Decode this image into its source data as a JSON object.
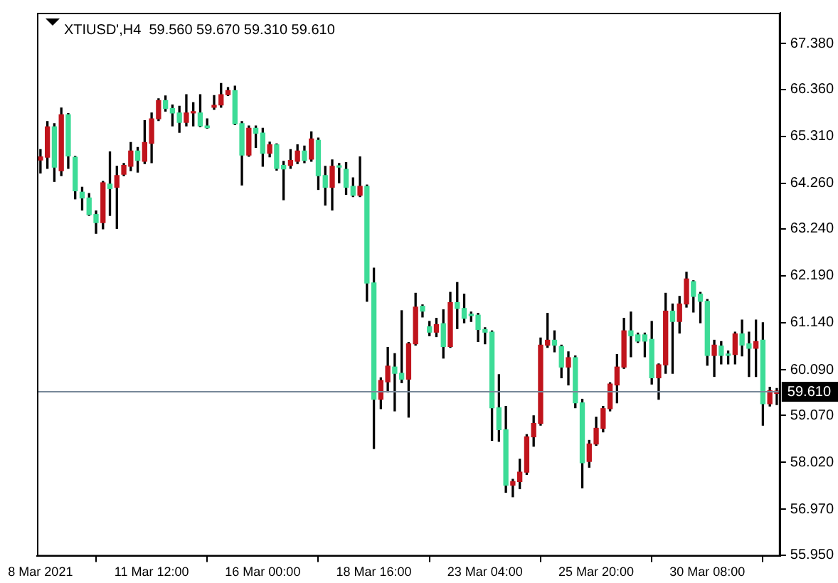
{
  "chart_data": {
    "type": "candlestick",
    "title": "XTIUSD',H4  59.560 59.670 59.310 59.610",
    "categories": [
      "8 Mar 2021",
      null,
      null,
      null,
      null,
      null,
      null,
      null,
      null,
      null,
      null,
      null,
      null,
      null,
      null,
      null,
      "11 Mar 12:00",
      null,
      null,
      null,
      null,
      null,
      null,
      null,
      null,
      null,
      null,
      null,
      null,
      null,
      null,
      null,
      "16 Mar 00:00",
      null,
      null,
      null,
      null,
      null,
      null,
      null,
      null,
      null,
      null,
      null,
      null,
      null,
      null,
      null,
      "18 Mar 16:00",
      null,
      null,
      null,
      null,
      null,
      null,
      null,
      null,
      null,
      null,
      null,
      null,
      null,
      null,
      null,
      "23 Mar 04:00",
      null,
      null,
      null,
      null,
      null,
      null,
      null,
      null,
      null,
      null,
      null,
      null,
      null,
      null,
      null,
      "25 Mar 20:00",
      null,
      null,
      null,
      null,
      null,
      null,
      null,
      null,
      null,
      null,
      null,
      null,
      null,
      null,
      null,
      "30 Mar 08:00",
      null,
      null,
      null,
      null,
      null,
      null,
      null,
      null,
      null,
      null
    ],
    "ohlc": [
      [
        64.78,
        65.01,
        64.49,
        64.85
      ],
      [
        64.84,
        65.64,
        64.59,
        65.52
      ],
      [
        65.52,
        65.59,
        64.3,
        64.62
      ],
      [
        64.54,
        65.94,
        64.43,
        65.79
      ],
      [
        65.79,
        65.82,
        64.59,
        64.87
      ],
      [
        64.84,
        64.86,
        63.91,
        64.09
      ],
      [
        64.06,
        64.17,
        63.66,
        63.93
      ],
      [
        63.93,
        64.03,
        63.54,
        63.56
      ],
      [
        63.56,
        63.64,
        63.14,
        63.38
      ],
      [
        63.38,
        64.3,
        63.24,
        64.27
      ],
      [
        64.24,
        64.96,
        63.54,
        64.14
      ],
      [
        64.17,
        64.64,
        63.25,
        64.43
      ],
      [
        64.46,
        64.7,
        64.43,
        64.66
      ],
      [
        64.64,
        65.17,
        64.54,
        64.98
      ],
      [
        64.98,
        65.06,
        64.51,
        64.77
      ],
      [
        64.75,
        65.66,
        64.7,
        65.17
      ],
      [
        65.15,
        65.83,
        64.72,
        65.7
      ],
      [
        65.7,
        66.15,
        65.66,
        66.11
      ],
      [
        66.11,
        66.21,
        65.87,
        65.93
      ],
      [
        65.93,
        66.01,
        65.54,
        65.83
      ],
      [
        65.83,
        65.98,
        65.4,
        65.62
      ],
      [
        65.62,
        66.24,
        65.54,
        65.83
      ],
      [
        65.83,
        66.06,
        65.54,
        65.85
      ],
      [
        65.83,
        66.24,
        65.52,
        65.54
      ],
      [
        65.54,
        65.7,
        65.49,
        65.5
      ],
      [
        65.96,
        66.22,
        65.91,
        66.0
      ],
      [
        66.01,
        66.49,
        65.96,
        66.24
      ],
      [
        66.24,
        66.4,
        66.22,
        66.33
      ],
      [
        66.33,
        66.43,
        65.57,
        65.59
      ],
      [
        65.59,
        65.64,
        64.22,
        64.89
      ],
      [
        64.89,
        65.54,
        64.86,
        65.49
      ],
      [
        65.49,
        65.54,
        65.06,
        65.38
      ],
      [
        65.38,
        65.49,
        64.64,
        64.93
      ],
      [
        64.93,
        65.18,
        64.85,
        65.12
      ],
      [
        65.12,
        65.14,
        64.55,
        64.59
      ],
      [
        64.66,
        64.75,
        63.89,
        64.58
      ],
      [
        64.66,
        65.01,
        64.59,
        64.77
      ],
      [
        64.75,
        65.12,
        64.7,
        64.98
      ],
      [
        64.98,
        65.09,
        64.72,
        64.77
      ],
      [
        64.8,
        65.41,
        64.75,
        65.25
      ],
      [
        65.22,
        65.27,
        64.12,
        64.43
      ],
      [
        64.43,
        64.64,
        63.77,
        64.17
      ],
      [
        64.17,
        64.78,
        63.66,
        64.64
      ],
      [
        64.64,
        64.7,
        64.27,
        64.62
      ],
      [
        64.57,
        64.72,
        64.01,
        64.17
      ],
      [
        64.19,
        64.38,
        63.96,
        63.99
      ],
      [
        63.99,
        64.85,
        63.96,
        64.19
      ],
      [
        64.19,
        64.22,
        61.62,
        62.03
      ],
      [
        62.03,
        62.36,
        58.33,
        59.43
      ],
      [
        59.43,
        59.91,
        59.22,
        59.85
      ],
      [
        59.82,
        60.59,
        59.59,
        60.17
      ],
      [
        60.15,
        60.45,
        59.17,
        60.01
      ],
      [
        60.01,
        61.41,
        59.8,
        59.88
      ],
      [
        59.88,
        60.7,
        59.03,
        60.67
      ],
      [
        60.67,
        61.8,
        60.64,
        61.49
      ],
      [
        61.51,
        61.54,
        61.27,
        61.4
      ],
      [
        61.05,
        61.17,
        60.85,
        60.93
      ],
      [
        60.93,
        61.24,
        60.83,
        61.1
      ],
      [
        61.12,
        61.43,
        60.35,
        60.61
      ],
      [
        60.61,
        61.82,
        60.59,
        61.59
      ],
      [
        61.59,
        62.04,
        61.01,
        61.46
      ],
      [
        61.46,
        61.78,
        61.14,
        61.24
      ],
      [
        61.31,
        61.38,
        61.17,
        61.3
      ],
      [
        61.31,
        61.35,
        60.72,
        60.99
      ],
      [
        60.99,
        61.03,
        60.67,
        60.93
      ],
      [
        60.93,
        60.96,
        58.51,
        59.24
      ],
      [
        59.24,
        59.98,
        58.49,
        58.75
      ],
      [
        58.75,
        59.27,
        57.35,
        57.51
      ],
      [
        57.51,
        57.64,
        57.25,
        57.59
      ],
      [
        57.59,
        58.09,
        57.43,
        57.8
      ],
      [
        57.8,
        58.64,
        57.75,
        58.59
      ],
      [
        58.59,
        59.06,
        58.38,
        58.89
      ],
      [
        58.89,
        60.8,
        58.85,
        60.64
      ],
      [
        60.64,
        61.35,
        60.59,
        60.75
      ],
      [
        60.75,
        60.96,
        60.49,
        60.64
      ],
      [
        60.61,
        60.64,
        59.91,
        60.15
      ],
      [
        60.15,
        60.49,
        59.75,
        60.36
      ],
      [
        60.36,
        60.4,
        59.24,
        59.35
      ],
      [
        59.35,
        59.43,
        57.45,
        58.01
      ],
      [
        58.04,
        58.51,
        57.91,
        58.43
      ],
      [
        58.43,
        59.03,
        58.4,
        58.78
      ],
      [
        58.78,
        59.27,
        58.7,
        59.22
      ],
      [
        59.22,
        59.8,
        59.17,
        59.77
      ],
      [
        59.75,
        60.43,
        59.35,
        60.15
      ],
      [
        60.15,
        61.24,
        60.12,
        60.96
      ],
      [
        60.96,
        61.38,
        60.38,
        60.85
      ],
      [
        60.87,
        60.91,
        60.7,
        60.73
      ],
      [
        60.87,
        60.91,
        60.38,
        60.73
      ],
      [
        60.77,
        61.17,
        59.77,
        59.91
      ],
      [
        59.91,
        60.22,
        59.43,
        60.2
      ],
      [
        60.2,
        61.8,
        60.01,
        61.4
      ],
      [
        61.4,
        61.56,
        60.01,
        61.17
      ],
      [
        61.17,
        61.73,
        60.91,
        61.56
      ],
      [
        61.56,
        62.27,
        61.49,
        62.12
      ],
      [
        62.06,
        62.08,
        61.38,
        61.73
      ],
      [
        61.78,
        61.82,
        61.14,
        61.62
      ],
      [
        61.62,
        61.66,
        60.19,
        60.41
      ],
      [
        60.41,
        60.75,
        59.94,
        60.64
      ],
      [
        60.62,
        60.72,
        60.22,
        60.41
      ],
      [
        60.43,
        60.51,
        60.22,
        60.41
      ],
      [
        60.43,
        60.93,
        60.22,
        60.89
      ],
      [
        60.89,
        61.2,
        60.4,
        60.64
      ],
      [
        60.67,
        60.93,
        59.94,
        60.57
      ],
      [
        60.57,
        61.2,
        59.94,
        60.72
      ],
      [
        60.75,
        61.14,
        58.85,
        59.33
      ],
      [
        59.33,
        59.7,
        59.28,
        59.62
      ],
      [
        59.56,
        59.67,
        59.31,
        59.61
      ]
    ],
    "colors": [
      "#c0141c",
      "#c0141c",
      "#3ddc97",
      "#c0141c",
      "#3ddc97",
      "#3ddc97",
      "#3ddc97",
      "#3ddc97",
      "#3ddc97",
      "#c0141c",
      "#3ddc97",
      "#c0141c",
      "#c0141c",
      "#c0141c",
      "#3ddc97",
      "#c0141c",
      "#c0141c",
      "#c0141c",
      "#3ddc97",
      "#3ddc97",
      "#3ddc97",
      "#c0141c",
      "#c0141c",
      "#3ddc97",
      "#3ddc97",
      "#c0141c",
      "#c0141c",
      "#c0141c",
      "#3ddc97",
      "#3ddc97",
      "#c0141c",
      "#3ddc97",
      "#3ddc97",
      "#c0141c",
      "#3ddc97",
      "#3ddc97",
      "#c0141c",
      "#c0141c",
      "#3ddc97",
      "#c0141c",
      "#3ddc97",
      "#3ddc97",
      "#c0141c",
      "#3ddc97",
      "#3ddc97",
      "#3ddc97",
      "#c0141c",
      "#3ddc97",
      "#3ddc97",
      "#c0141c",
      "#c0141c",
      "#3ddc97",
      "#3ddc97",
      "#c0141c",
      "#c0141c",
      "#3ddc97",
      "#3ddc97",
      "#c0141c",
      "#3ddc97",
      "#c0141c",
      "#3ddc97",
      "#3ddc97",
      "#3ddc97",
      "#3ddc97",
      "#3ddc97",
      "#3ddc97",
      "#3ddc97",
      "#3ddc97",
      "#c0141c",
      "#c0141c",
      "#c0141c",
      "#c0141c",
      "#c0141c",
      "#c0141c",
      "#3ddc97",
      "#3ddc97",
      "#c0141c",
      "#3ddc97",
      "#3ddc97",
      "#c0141c",
      "#c0141c",
      "#c0141c",
      "#c0141c",
      "#c0141c",
      "#c0141c",
      "#3ddc97",
      "#3ddc97",
      "#3ddc97",
      "#3ddc97",
      "#c0141c",
      "#c0141c",
      "#3ddc97",
      "#c0141c",
      "#c0141c",
      "#3ddc97",
      "#3ddc97",
      "#3ddc97",
      "#c0141c",
      "#3ddc97",
      "#3ddc97",
      "#c0141c",
      "#3ddc97",
      "#3ddc97",
      "#c0141c",
      "#3ddc97",
      "#c0141c",
      "#c0141c"
    ],
    "ylim": [
      55.92,
      68.07
    ],
    "yticks": [
      {
        "value": 67.38,
        "label": "67.380"
      },
      {
        "value": 66.36,
        "label": "66.360"
      },
      {
        "value": 65.31,
        "label": "65.310"
      },
      {
        "value": 64.26,
        "label": "64.260"
      },
      {
        "value": 63.24,
        "label": "63.240"
      },
      {
        "value": 62.19,
        "label": "62.190"
      },
      {
        "value": 61.14,
        "label": "61.140"
      },
      {
        "value": 60.09,
        "label": "60.090"
      },
      {
        "value": 59.07,
        "label": "59.070"
      },
      {
        "value": 58.02,
        "label": "58.020"
      },
      {
        "value": 56.97,
        "label": "56.970"
      },
      {
        "value": 55.95,
        "label": "55.950"
      }
    ],
    "ref_lines": [
      {
        "axis": "y",
        "value": 59.61,
        "label": "59.610",
        "color": "#778899"
      }
    ]
  }
}
